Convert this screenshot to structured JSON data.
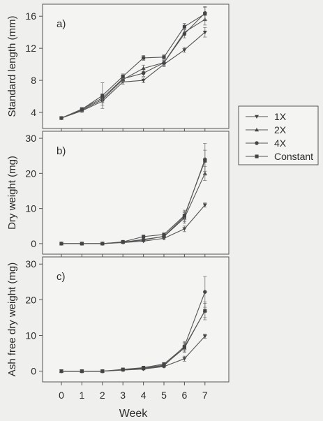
{
  "chart_data": {
    "type": "line",
    "xlabel": "Week",
    "x": [
      0,
      1,
      2,
      3,
      4,
      5,
      6,
      7
    ],
    "xticks": [
      "0",
      "1",
      "2",
      "3",
      "4",
      "5",
      "6",
      "7"
    ],
    "legend": {
      "placement": "right",
      "entries": [
        {
          "name": "1X",
          "marker": "triangle-down"
        },
        {
          "name": "2X",
          "marker": "triangle-up"
        },
        {
          "name": "4X",
          "marker": "circle"
        },
        {
          "name": "Constant",
          "marker": "square"
        }
      ]
    },
    "panels": [
      {
        "label": "a)",
        "ylabel": "Standard length (mm)",
        "ylim": [
          2,
          17.5
        ],
        "yticks": [
          4,
          8,
          12,
          16
        ],
        "series": [
          {
            "name": "1X",
            "values": [
              3.3,
              4.2,
              5.4,
              7.8,
              8.0,
              10.0,
              11.8,
              14.0
            ],
            "err": [
              0.1,
              0.2,
              0.5,
              0.3,
              0.3,
              0.3,
              0.3,
              0.6
            ]
          },
          {
            "name": "2X",
            "values": [
              3.3,
              4.3,
              5.6,
              8.1,
              9.5,
              10.2,
              14.0,
              15.6
            ],
            "err": [
              0.1,
              0.2,
              0.4,
              0.3,
              0.4,
              0.3,
              0.4,
              0.7
            ]
          },
          {
            "name": "4X",
            "values": [
              3.3,
              4.4,
              5.8,
              8.2,
              8.9,
              10.2,
              13.8,
              16.4
            ],
            "err": [
              0.1,
              0.2,
              0.5,
              0.3,
              0.4,
              0.3,
              0.5,
              0.8
            ]
          },
          {
            "name": "Constant",
            "values": [
              3.3,
              4.4,
              6.1,
              8.5,
              10.8,
              10.9,
              14.7,
              16.3
            ],
            "err": [
              0.1,
              0.2,
              1.6,
              0.3,
              0.3,
              0.3,
              0.4,
              0.8
            ]
          }
        ]
      },
      {
        "label": "b)",
        "ylabel": "Dry weight (mg)",
        "ylim": [
          -3,
          32
        ],
        "yticks": [
          0,
          10,
          20,
          30
        ],
        "series": [
          {
            "name": "1X",
            "values": [
              0.0,
              0.0,
              0.0,
              0.3,
              0.7,
              1.5,
              4.2,
              11.0
            ],
            "err": [
              0,
              0,
              0,
              0.1,
              0.2,
              0.3,
              0.8,
              0.6
            ]
          },
          {
            "name": "2X",
            "values": [
              0.0,
              0.0,
              0.0,
              0.4,
              1.2,
              2.0,
              7.3,
              20.0
            ],
            "err": [
              0,
              0,
              0,
              0.1,
              0.3,
              0.4,
              1.5,
              2.0
            ]
          },
          {
            "name": "4X",
            "values": [
              0.0,
              0.0,
              0.0,
              0.4,
              1.0,
              2.1,
              7.7,
              24.0
            ],
            "err": [
              0,
              0,
              0,
              0.1,
              0.3,
              0.4,
              1.5,
              4.5
            ]
          },
          {
            "name": "Constant",
            "values": [
              0.0,
              0.0,
              0.0,
              0.5,
              2.0,
              2.6,
              8.0,
              23.6
            ],
            "err": [
              0,
              0,
              0,
              0.1,
              0.3,
              0.4,
              1.5,
              3.0
            ]
          }
        ]
      },
      {
        "label": "c)",
        "ylabel": "Ash free dry weight (mg)",
        "ylim": [
          -3,
          32
        ],
        "yticks": [
          0,
          10,
          20,
          30
        ],
        "series": [
          {
            "name": "1X",
            "values": [
              0.0,
              0.0,
              0.0,
              0.3,
              0.6,
              1.3,
              3.5,
              9.8
            ],
            "err": [
              0,
              0,
              0,
              0.1,
              0.2,
              0.3,
              0.7,
              0.6
            ]
          },
          {
            "name": "2X",
            "values": [
              0.0,
              0.0,
              0.0,
              0.4,
              0.8,
              1.7,
              6.5,
              17.0
            ],
            "err": [
              0,
              0,
              0,
              0.1,
              0.2,
              0.3,
              1.2,
              2.0
            ]
          },
          {
            "name": "4X",
            "values": [
              0.0,
              0.0,
              0.0,
              0.4,
              0.7,
              1.5,
              7.0,
              22.2
            ],
            "err": [
              0,
              0,
              0,
              0.1,
              0.2,
              0.3,
              1.3,
              4.3
            ]
          },
          {
            "name": "Constant",
            "values": [
              0.0,
              0.0,
              0.0,
              0.5,
              1.0,
              2.0,
              6.8,
              16.9
            ],
            "err": [
              0,
              0,
              0,
              0.1,
              0.2,
              0.3,
              1.2,
              2.5
            ]
          }
        ]
      }
    ]
  }
}
